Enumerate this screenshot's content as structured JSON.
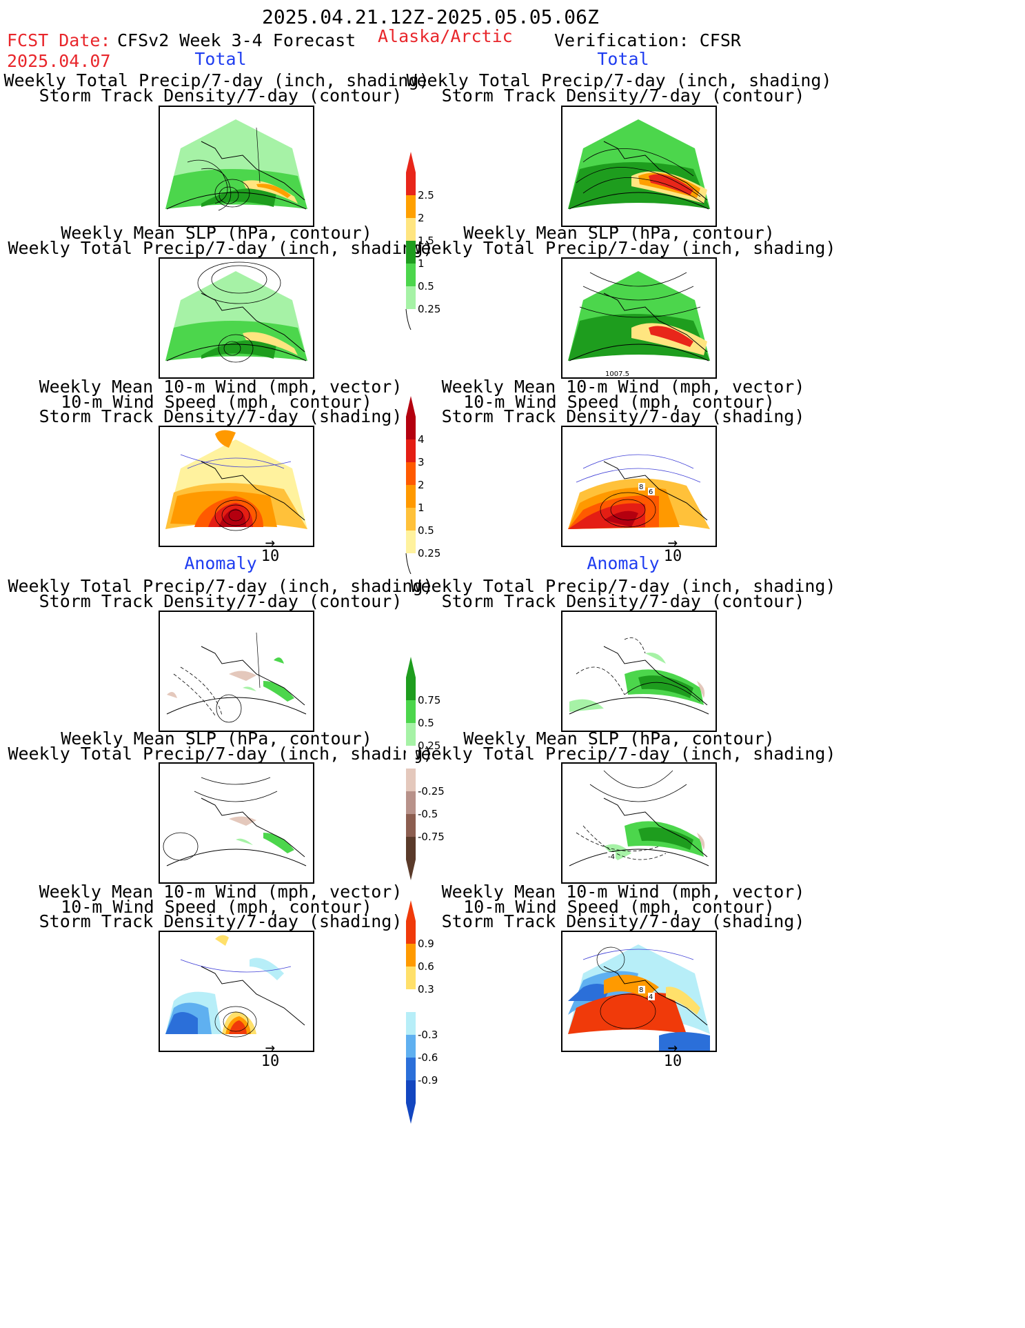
{
  "header": {
    "period": "2025.04.21.12Z-2025.05.05.06Z",
    "fcst_label": "FCST Date:",
    "fcst_date": "2025.04.07",
    "model": "CFSv2 Week 3-4 Forecast",
    "region": "Alaska/Arctic",
    "verification": "Verification: CFSR"
  },
  "sections": {
    "total": "Total",
    "anomaly": "Anomaly"
  },
  "titles": {
    "precip_track": [
      "Weekly Total Precip/7-day (inch, shading)",
      "Storm Track Density/7-day (contour)"
    ],
    "slp_precip": [
      "Weekly Mean SLP (hPa, contour)",
      "Weekly Total Precip/7-day (inch, shading)"
    ],
    "wind_track": [
      "Weekly Mean 10-m Wind (mph, vector)",
      "10-m Wind Speed (mph, contour)",
      "Storm Track Density/7-day (shading)"
    ]
  },
  "contour_labels": {
    "slp_cfsr_total": "1007.5",
    "slp_cfsr_anom": "-4",
    "wind_cfsr_total": [
      "8",
      "6"
    ],
    "wind_cfsr_anom": [
      "8",
      "4"
    ]
  },
  "vector_reference": "10",
  "colorbars": {
    "precip_total": {
      "labels": [
        "2.5",
        "2",
        "1.5",
        "1",
        "0.5",
        "0.25"
      ],
      "colors": [
        "#e8261a",
        "#ffa000",
        "#ffe580",
        "#1e9d1e",
        "#4cd64c",
        "#a6f2a6"
      ]
    },
    "track_total": {
      "labels": [
        "4",
        "3",
        "2",
        "1",
        "0.5",
        "0.25"
      ],
      "colors": [
        "#b4000f",
        "#e41e14",
        "#ff5a00",
        "#ff9900",
        "#ffc13a",
        "#fff29e"
      ]
    },
    "precip_anom": {
      "labels": [
        "0.75",
        "0.5",
        "0.25",
        "-0.25",
        "-0.5",
        "-0.75"
      ],
      "colors": [
        "#1e9d1e",
        "#4cd64c",
        "#a6f2a6",
        "#ffffff",
        "#e4c8bc",
        "#b8928a",
        "#8c5e50",
        "#5a3a2a"
      ]
    },
    "track_anom": {
      "labels": [
        "0.9",
        "0.6",
        "0.3",
        "-0.3",
        "-0.6",
        "-0.9"
      ],
      "colors": [
        "#f03a0a",
        "#ff9a00",
        "#ffe06a",
        "#ffffff",
        "#b7eef8",
        "#5fb0f0",
        "#2b6fd9",
        "#1346c0"
      ]
    }
  }
}
